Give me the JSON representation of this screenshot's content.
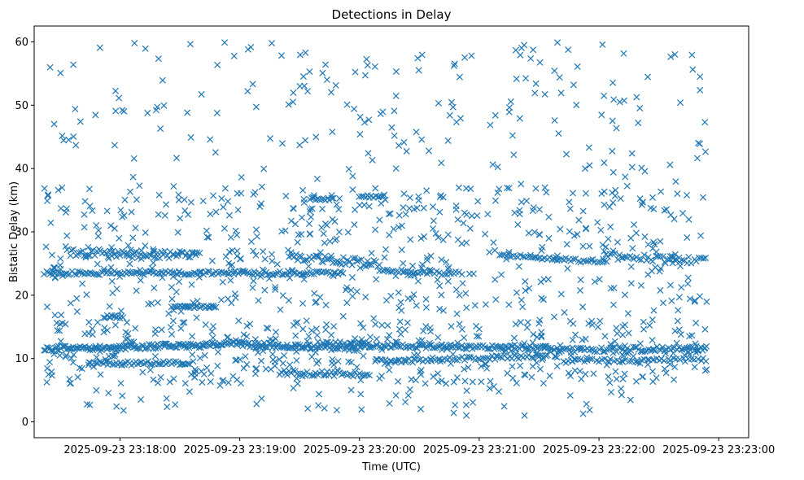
{
  "chart_data": {
    "type": "scatter",
    "title": "Detections in Delay",
    "xlabel": "Time (UTC)",
    "ylabel": "Bistatic Delay (km)",
    "marker": "x",
    "color": "#1f77b4",
    "x_domain_seconds": [
      -43,
      315
    ],
    "x_origin_time": "2025-09-23 23:18:00",
    "ylim": [
      -2.5,
      62.5
    ],
    "x_ticks": [
      {
        "value": 0,
        "label": "2025-09-23 23:18:00"
      },
      {
        "value": 60,
        "label": "2025-09-23 23:19:00"
      },
      {
        "value": 120,
        "label": "2025-09-23 23:20:00"
      },
      {
        "value": 180,
        "label": "2025-09-23 23:21:00"
      },
      {
        "value": 240,
        "label": "2025-09-23 23:22:00"
      },
      {
        "value": 300,
        "label": "2025-09-23 23:23:00"
      }
    ],
    "y_ticks": [
      {
        "value": 0,
        "label": "0"
      },
      {
        "value": 10,
        "label": "10"
      },
      {
        "value": 20,
        "label": "20"
      },
      {
        "value": 30,
        "label": "30"
      },
      {
        "value": 40,
        "label": "40"
      },
      {
        "value": 50,
        "label": "50"
      },
      {
        "value": 60,
        "label": "60"
      }
    ],
    "data_range_seconds": [
      -38,
      294
    ],
    "tracks": [
      {
        "t0": -38,
        "t1": 62,
        "y0": 11.5,
        "y1": 12.3,
        "spread": 0.4,
        "step": 0.7
      },
      {
        "t0": 62,
        "t1": 120,
        "y0": 12.2,
        "y1": 11.6,
        "spread": 0.4,
        "step": 0.8
      },
      {
        "t0": 120,
        "t1": 215,
        "y0": 12.0,
        "y1": 11.7,
        "spread": 0.3,
        "step": 0.9
      },
      {
        "t0": 215,
        "t1": 294,
        "y0": 11.3,
        "y1": 11.6,
        "spread": 0.4,
        "step": 1.0
      },
      {
        "t0": -16,
        "t1": 35,
        "y0": 9.2,
        "y1": 9.3,
        "spread": 0.3,
        "step": 1.0
      },
      {
        "t0": 80,
        "t1": 125,
        "y0": 7.8,
        "y1": 7.5,
        "spread": 0.4,
        "step": 1.0
      },
      {
        "t0": 128,
        "t1": 215,
        "y0": 9.6,
        "y1": 10.4,
        "spread": 0.3,
        "step": 1.2
      },
      {
        "t0": 222,
        "t1": 294,
        "y0": 9.6,
        "y1": 9.8,
        "spread": 0.3,
        "step": 1.5
      },
      {
        "t0": -38,
        "t1": 40,
        "y0": 23.5,
        "y1": 23.5,
        "spread": 0.3,
        "step": 1.0
      },
      {
        "t0": 40,
        "t1": 112,
        "y0": 23.5,
        "y1": 23.5,
        "spread": 0.3,
        "step": 1.0
      },
      {
        "t0": -25,
        "t1": 40,
        "y0": 26.8,
        "y1": 26.3,
        "spread": 0.6,
        "step": 0.9
      },
      {
        "t0": 85,
        "t1": 130,
        "y0": 26.0,
        "y1": 25.0,
        "spread": 0.6,
        "step": 1.0
      },
      {
        "t0": 130,
        "t1": 170,
        "y0": 24.0,
        "y1": 23.4,
        "spread": 0.3,
        "step": 1.2
      },
      {
        "t0": 190,
        "t1": 245,
        "y0": 26.3,
        "y1": 25.2,
        "spread": 0.3,
        "step": 1.2
      },
      {
        "t0": 242,
        "t1": 294,
        "y0": 26.2,
        "y1": 25.4,
        "spread": 0.5,
        "step": 1.2
      },
      {
        "t0": 95,
        "t1": 107,
        "y0": 35.2,
        "y1": 35.2,
        "spread": 0.2,
        "step": 1.0
      },
      {
        "t0": 26,
        "t1": 48,
        "y0": 18.2,
        "y1": 18.2,
        "spread": 0.2,
        "step": 1.0
      },
      {
        "t0": -8,
        "t1": 2,
        "y0": 16.6,
        "y1": 16.6,
        "spread": 0.3,
        "step": 0.8
      },
      {
        "t0": 120,
        "t1": 132,
        "y0": 35.6,
        "y1": 35.6,
        "spread": 0.2,
        "step": 1.0
      },
      {
        "t0": 102,
        "t1": 126,
        "y0": 12.4,
        "y1": 12.4,
        "spread": 0.3,
        "step": 1.2
      }
    ],
    "scatter_count": 1200,
    "random_seed": 20250923
  }
}
